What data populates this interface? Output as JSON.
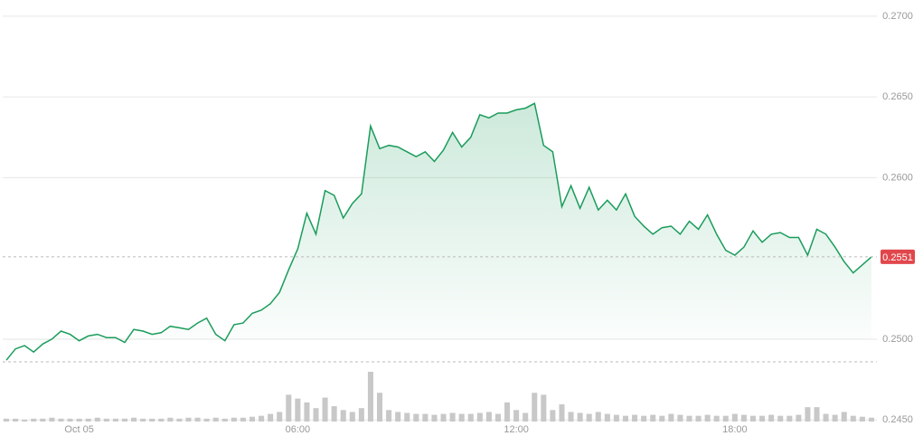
{
  "chart_data": {
    "type": "line",
    "x": [
      -2,
      -1.75,
      -1.5,
      -1.25,
      -1,
      -0.75,
      -0.5,
      -0.25,
      0,
      0.25,
      0.5,
      0.75,
      1,
      1.25,
      1.5,
      1.75,
      2,
      2.25,
      2.5,
      2.75,
      3,
      3.25,
      3.5,
      3.75,
      4,
      4.25,
      4.5,
      4.75,
      5,
      5.25,
      5.5,
      5.75,
      6,
      6.25,
      6.5,
      6.75,
      7,
      7.25,
      7.5,
      7.75,
      8,
      8.25,
      8.5,
      8.75,
      9,
      9.25,
      9.5,
      9.75,
      10,
      10.25,
      10.5,
      10.75,
      11,
      11.25,
      11.5,
      11.75,
      12,
      12.25,
      12.5,
      12.75,
      13,
      13.25,
      13.5,
      13.75,
      14,
      14.25,
      14.5,
      14.75,
      15,
      15.25,
      15.5,
      15.75,
      16,
      16.25,
      16.5,
      16.75,
      17,
      17.25,
      17.5,
      17.75,
      18,
      18.25,
      18.5,
      18.75,
      19,
      19.25,
      19.5,
      19.75,
      20,
      20.25,
      20.5,
      20.75,
      21,
      21.25,
      21.5,
      21.75
    ],
    "values": [
      0.2487,
      0.2494,
      0.2496,
      0.2492,
      0.2497,
      0.25,
      0.2505,
      0.2503,
      0.2499,
      0.2502,
      0.2503,
      0.2501,
      0.2501,
      0.2498,
      0.2506,
      0.2505,
      0.2503,
      0.2504,
      0.2508,
      0.2507,
      0.2506,
      0.251,
      0.2513,
      0.2503,
      0.2499,
      0.2509,
      0.251,
      0.2516,
      0.2518,
      0.2522,
      0.2529,
      0.2543,
      0.2556,
      0.2578,
      0.2565,
      0.2592,
      0.2589,
      0.2575,
      0.2584,
      0.259,
      0.2632,
      0.2618,
      0.262,
      0.2619,
      0.2616,
      0.2613,
      0.2616,
      0.261,
      0.2617,
      0.2628,
      0.2619,
      0.2625,
      0.2639,
      0.2637,
      0.264,
      0.264,
      0.2642,
      0.2643,
      0.2646,
      0.262,
      0.2616,
      0.2582,
      0.2595,
      0.2581,
      0.2594,
      0.258,
      0.2586,
      0.258,
      0.259,
      0.2576,
      0.257,
      0.2565,
      0.2569,
      0.257,
      0.2565,
      0.2573,
      0.2568,
      0.2577,
      0.2565,
      0.2555,
      0.2552,
      0.2557,
      0.2567,
      0.256,
      0.2565,
      0.2566,
      0.2563,
      0.2563,
      0.2552,
      0.2568,
      0.2565,
      0.2557,
      0.2548,
      0.2541,
      0.2546,
      0.2551
    ],
    "volume": [
      3,
      3,
      2,
      3,
      3,
      4,
      3,
      3,
      3,
      3,
      4,
      3,
      3,
      3,
      4,
      3,
      3,
      3,
      4,
      3,
      4,
      4,
      3,
      4,
      3,
      4,
      4,
      5,
      6,
      8,
      10,
      28,
      24,
      20,
      14,
      25,
      16,
      12,
      10,
      14,
      52,
      30,
      12,
      10,
      9,
      8,
      8,
      7,
      8,
      9,
      8,
      8,
      9,
      10,
      8,
      20,
      12,
      9,
      30,
      28,
      12,
      18,
      10,
      9,
      8,
      10,
      8,
      7,
      6,
      7,
      6,
      7,
      6,
      8,
      7,
      6,
      6,
      7,
      6,
      6,
      8,
      7,
      6,
      6,
      7,
      6,
      6,
      7,
      15,
      15,
      8,
      7,
      10,
      6,
      5,
      4
    ],
    "color": "#1a9c5b",
    "volume_color": "#c8c8c8",
    "xlim": [
      -2.1,
      21.9
    ],
    "xticks": [
      {
        "value": 0,
        "label": "Oct 05"
      },
      {
        "value": 6,
        "label": "06:00"
      },
      {
        "value": 12,
        "label": "12:00"
      },
      {
        "value": 18,
        "label": "18:00"
      }
    ],
    "ylim": [
      0.2449,
      0.271
    ],
    "yticks": [
      {
        "value": 0.245,
        "label": "0.2450"
      },
      {
        "value": 0.25,
        "label": "0.2500"
      },
      {
        "value": 0.26,
        "label": "0.2600"
      },
      {
        "value": 0.265,
        "label": "0.2650"
      },
      {
        "value": 0.27,
        "label": "0.2700"
      }
    ],
    "last_price": 0.2551,
    "reference_price": 0.2486,
    "grid": true
  }
}
